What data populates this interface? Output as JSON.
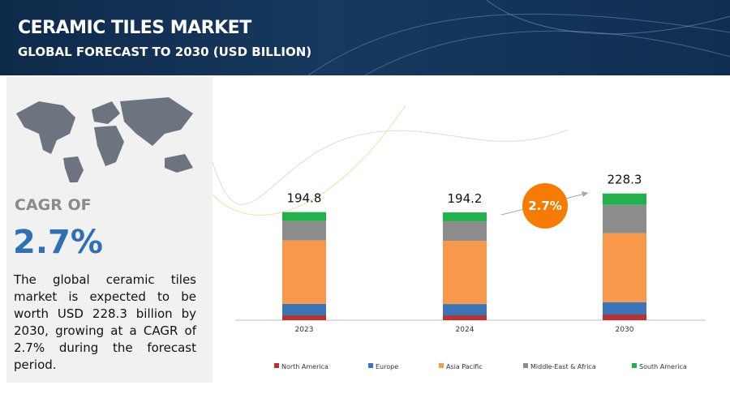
{
  "title": "CERAMIC TILES MARKET",
  "subtitle": "GLOBAL FORECAST TO 2030 (USD BILLION)",
  "cagr_heading": "CAGR OF",
  "cagr": "2.7%",
  "description": "The global ceramic tiles market is expected to be worth USD 228.3 billion by 2030, growing at a CAGR of 2.7% during the forecast period.",
  "chart_data": {
    "type": "stacked_bar",
    "categories": [
      "2023",
      "2024",
      "2030"
    ],
    "totals": [
      194.8,
      194.2,
      228.3
    ],
    "ylim": [
      0,
      260
    ],
    "series": [
      {
        "name": "North America",
        "color": "#b83232",
        "values": [
          8.8,
          8.7,
          10.2
        ]
      },
      {
        "name": "Europe",
        "color": "#3b74b8",
        "values": [
          20.5,
          20.4,
          22.0
        ]
      },
      {
        "name": "Asia Pacific",
        "color": "#f7984a",
        "values": [
          114.3,
          113.9,
          124.4
        ]
      },
      {
        "name": "Middle-East & Africa",
        "color": "#8c8c8c",
        "values": [
          35.2,
          35.1,
          51.2
        ]
      },
      {
        "name": "South America",
        "color": "#22b24c",
        "values": [
          16.0,
          16.1,
          20.5
        ]
      }
    ],
    "annotation": "2.7%",
    "annotation_color": "#f57c00"
  }
}
